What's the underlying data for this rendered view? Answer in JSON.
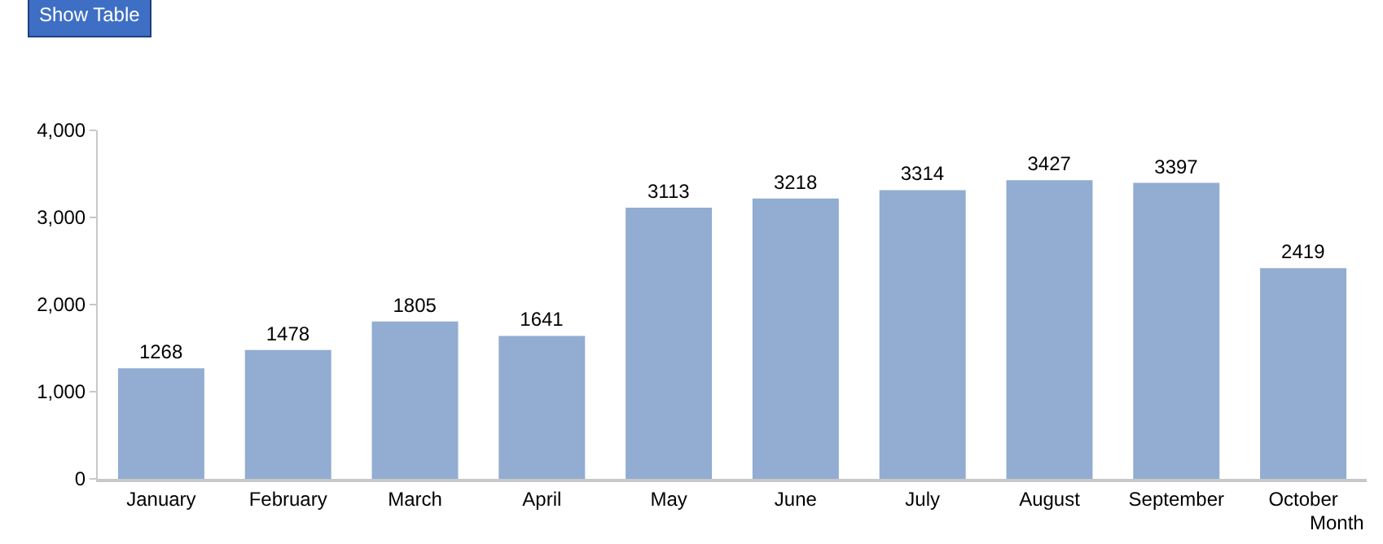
{
  "chart_data": {
    "type": "bar",
    "xlabel": "Month",
    "categories": [
      "January",
      "February",
      "March",
      "April",
      "May",
      "June",
      "July",
      "August",
      "September",
      "October"
    ],
    "values": [
      1268,
      1478,
      1805,
      1641,
      3113,
      3218,
      3314,
      3427,
      3397,
      2419
    ],
    "color": "#92acd2",
    "ylim": [
      0,
      4000
    ],
    "yticks": [
      0,
      {
        "value": 1000,
        "label": "1,000"
      },
      {
        "value": 2000,
        "label": "2,000"
      },
      {
        "value": 3000,
        "label": "3,000"
      },
      {
        "value": 4000,
        "label": "4,000"
      }
    ],
    "data_labels": true,
    "annotations": [
      "Show Table"
    ]
  }
}
